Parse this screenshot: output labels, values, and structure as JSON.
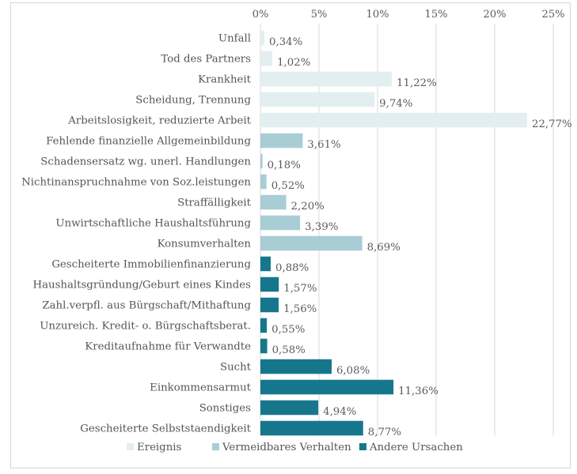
{
  "chart_data": {
    "type": "bar",
    "orientation": "horizontal",
    "xlim": [
      0,
      25
    ],
    "x_ticks": [
      0,
      5,
      10,
      15,
      20,
      25
    ],
    "x_tick_labels": [
      "0%",
      "5%",
      "10%",
      "15%",
      "20%",
      "25%"
    ],
    "x_axis_position": "top",
    "grid": true,
    "legend_position": "bottom",
    "categories": [
      "Unfall",
      "Tod des Partners",
      "Krankheit",
      "Scheidung, Trennung",
      "Arbeitslosigkeit, reduzierte Arbeit",
      "Fehlende finanzielle Allgemeinbildung",
      "Schadensersatz wg. unerl. Handlungen",
      "Nichtinanspruchnahme von Soz.leistungen",
      "Straffälligkeit",
      "Unwirtschaftliche Haushaltsführung",
      "Konsumverhalten",
      "Gescheiterte Immobilienfinanzierung",
      "Haushaltsgründung/Geburt eines Kindes",
      "Zahl.verpfl. aus Bürgschaft/Mithaftung",
      "Unzureich. Kredit- o. Bürgschaftsberat.",
      "Kreditaufnahme für Verwandte",
      "Sucht",
      "Einkommensarmut",
      "Sonstiges",
      "Gescheiterte Selbststaendigkeit"
    ],
    "values": [
      0.34,
      1.02,
      11.22,
      9.74,
      22.77,
      3.61,
      0.18,
      0.52,
      2.2,
      3.39,
      8.69,
      0.88,
      1.57,
      1.56,
      0.55,
      0.58,
      6.08,
      11.36,
      4.94,
      8.77
    ],
    "value_labels": [
      "0,34%",
      "1,02%",
      "11,22%",
      "9,74%",
      "22,77%",
      "3,61%",
      "0,18%",
      "0,52%",
      "2,20%",
      "3,39%",
      "8,69%",
      "0,88%",
      "1,57%",
      "1,56%",
      "0,55%",
      "0,58%",
      "6,08%",
      "11,36%",
      "4,94%",
      "8,77%"
    ],
    "groups": [
      0,
      0,
      0,
      0,
      0,
      1,
      1,
      1,
      1,
      1,
      1,
      2,
      2,
      2,
      2,
      2,
      2,
      2,
      2,
      2
    ],
    "series": [
      {
        "name": "Ereignis",
        "color": "#e3eef0"
      },
      {
        "name": "Vermeidbares Verhalten",
        "color": "#a9cdd5"
      },
      {
        "name": "Andere Ursachen",
        "color": "#16778c"
      }
    ]
  }
}
